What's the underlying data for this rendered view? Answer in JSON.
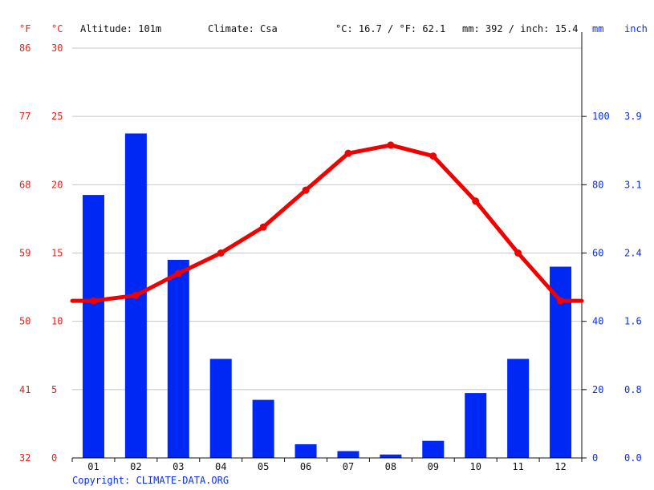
{
  "header": {
    "unit_f": "°F",
    "unit_c": "°C",
    "altitude": "Altitude: 101m",
    "climate": "Climate: Csa",
    "temp_summary": "°C: 16.7 / °F: 62.1",
    "precip_summary": "mm: 392 / inch: 15.4",
    "unit_mm": "mm",
    "unit_inch": "inch"
  },
  "copyright": "Copyright: CLIMATE-DATA.ORG",
  "colors": {
    "temperature": "#f00000",
    "precipitation": "#0028f5",
    "grid": "#c8c8c8",
    "axis": "#111111"
  },
  "chart_data": {
    "type": "bar+line",
    "categories": [
      "01",
      "02",
      "03",
      "04",
      "05",
      "06",
      "07",
      "08",
      "09",
      "10",
      "11",
      "12"
    ],
    "series": [
      {
        "type": "bar",
        "axis": "right",
        "unit": "mm",
        "values": [
          77,
          95,
          58,
          29,
          17,
          4,
          2,
          1,
          5,
          19,
          29,
          56
        ]
      },
      {
        "type": "line",
        "axis": "left",
        "unit": "°C",
        "values": [
          11.5,
          11.9,
          13.5,
          15.0,
          16.9,
          19.6,
          22.3,
          22.9,
          22.1,
          18.8,
          15.0,
          11.5
        ]
      }
    ],
    "left_axis": {
      "celsius_ticks": [
        "0",
        "5",
        "10",
        "15",
        "20",
        "25",
        "30"
      ],
      "fahrenheit_ticks": [
        "32",
        "41",
        "50",
        "59",
        "68",
        "77",
        "86"
      ],
      "range": [
        0,
        30
      ]
    },
    "right_axis": {
      "mm_ticks": [
        "0",
        "20",
        "40",
        "60",
        "80",
        "100"
      ],
      "inch_ticks": [
        "0.0",
        "0.8",
        "1.6",
        "2.4",
        "3.1",
        "3.9"
      ],
      "range": [
        0,
        120
      ]
    },
    "grid": true
  }
}
